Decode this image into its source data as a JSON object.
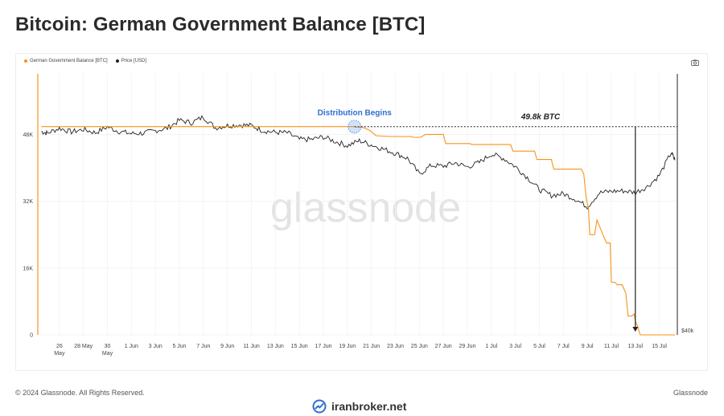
{
  "page": {
    "title": "Bitcoin: German Government Balance [BTC]",
    "copyright": "© 2024 Glassnode. All Rights Reserved.",
    "brand": "Glassnode",
    "watermark": "glassnode",
    "site": "iranbroker.net",
    "camera_icon": "camera-icon",
    "site_icon": "chart-logo-icon"
  },
  "chart_data": {
    "type": "line",
    "x_ticks": [
      {
        "day": 0,
        "label": [
          "26",
          "May"
        ]
      },
      {
        "day": 2,
        "label": [
          "28 May"
        ]
      },
      {
        "day": 4,
        "label": [
          "30",
          "May"
        ]
      },
      {
        "day": 6,
        "label": [
          "1 Jun"
        ]
      },
      {
        "day": 8,
        "label": [
          "3 Jun"
        ]
      },
      {
        "day": 10,
        "label": [
          "5 Jun"
        ]
      },
      {
        "day": 12,
        "label": [
          "7 Jun"
        ]
      },
      {
        "day": 14,
        "label": [
          "9 Jun"
        ]
      },
      {
        "day": 16,
        "label": [
          "11 Jun"
        ]
      },
      {
        "day": 18,
        "label": [
          "13 Jun"
        ]
      },
      {
        "day": 20,
        "label": [
          "15 Jun"
        ]
      },
      {
        "day": 22,
        "label": [
          "17 Jun"
        ]
      },
      {
        "day": 24,
        "label": [
          "19 Jun"
        ]
      },
      {
        "day": 26,
        "label": [
          "21 Jun"
        ]
      },
      {
        "day": 28,
        "label": [
          "23 Jun"
        ]
      },
      {
        "day": 30,
        "label": [
          "25 Jun"
        ]
      },
      {
        "day": 32,
        "label": [
          "27 Jun"
        ]
      },
      {
        "day": 34,
        "label": [
          "29 Jun"
        ]
      },
      {
        "day": 36,
        "label": [
          "1 Jul"
        ]
      },
      {
        "day": 38,
        "label": [
          "3 Jul"
        ]
      },
      {
        "day": 40,
        "label": [
          "5 Jul"
        ]
      },
      {
        "day": 42,
        "label": [
          "7 Jul"
        ]
      },
      {
        "day": 44,
        "label": [
          "9 Jul"
        ]
      },
      {
        "day": 46,
        "label": [
          "11 Jul"
        ]
      },
      {
        "day": 48,
        "label": [
          "13 Jul"
        ]
      },
      {
        "day": 50,
        "label": [
          "15 Jul"
        ]
      }
    ],
    "x_range": [
      -1.8,
      51.5
    ],
    "y_left": {
      "ticks": [
        0,
        16000,
        32000,
        48000
      ],
      "labels": [
        "0",
        "16K",
        "32K",
        "48K"
      ],
      "range": [
        0,
        62500
      ]
    },
    "y_right": {
      "labels": [
        "$40k"
      ],
      "value": 40000
    },
    "grid": true,
    "legend_position": "top-left",
    "series": [
      {
        "name": "German Government Balance [BTC]",
        "color": "#f7931a",
        "axis": "left",
        "points": [
          [
            -1.5,
            49858
          ],
          [
            24.6,
            49858
          ],
          [
            24.6,
            49800
          ],
          [
            25.4,
            49600
          ],
          [
            25.9,
            48900
          ],
          [
            26.4,
            47700
          ],
          [
            27.6,
            47500
          ],
          [
            29.3,
            47500
          ],
          [
            29.5,
            47300
          ],
          [
            30.1,
            47300
          ],
          [
            30.5,
            48000
          ],
          [
            32.0,
            48000
          ],
          [
            32.2,
            45800
          ],
          [
            34.2,
            45800
          ],
          [
            34.4,
            45600
          ],
          [
            37.6,
            45600
          ],
          [
            37.8,
            44000
          ],
          [
            39.6,
            44000
          ],
          [
            39.8,
            42000
          ],
          [
            41.0,
            42000
          ],
          [
            41.2,
            39700
          ],
          [
            43.5,
            39700
          ],
          [
            43.7,
            38500
          ],
          [
            43.9,
            33000
          ],
          [
            44.1,
            30000
          ],
          [
            44.2,
            24000
          ],
          [
            44.6,
            24000
          ],
          [
            44.8,
            27500
          ],
          [
            45.3,
            24000
          ],
          [
            45.6,
            22000
          ],
          [
            45.9,
            22000
          ],
          [
            46.0,
            12600
          ],
          [
            46.3,
            12600
          ],
          [
            46.5,
            12000
          ],
          [
            46.9,
            12000
          ],
          [
            47.2,
            10000
          ],
          [
            47.4,
            4500
          ],
          [
            47.7,
            4500
          ],
          [
            47.9,
            5000
          ],
          [
            48.0,
            3300
          ],
          [
            48.2,
            2000
          ],
          [
            48.4,
            0
          ],
          [
            51.3,
            0
          ]
        ]
      },
      {
        "name": "Price [USD]",
        "color": "#222222",
        "axis": "left",
        "points": [
          [
            -1.5,
            48700
          ],
          [
            -1,
            48300
          ],
          [
            0,
            49500
          ],
          [
            1,
            48600
          ],
          [
            2,
            49200
          ],
          [
            3,
            48400
          ],
          [
            4,
            49800
          ],
          [
            5,
            48700
          ],
          [
            6,
            48200
          ],
          [
            7,
            48300
          ],
          [
            8,
            48900
          ],
          [
            9,
            49500
          ],
          [
            10,
            51400
          ],
          [
            11,
            50800
          ],
          [
            12,
            52200
          ],
          [
            13,
            49600
          ],
          [
            14,
            50100
          ],
          [
            15,
            50300
          ],
          [
            16,
            50100
          ],
          [
            17,
            48900
          ],
          [
            18,
            48500
          ],
          [
            19,
            48400
          ],
          [
            20,
            46800
          ],
          [
            21,
            46800
          ],
          [
            22,
            47400
          ],
          [
            23,
            46300
          ],
          [
            24,
            45300
          ],
          [
            25,
            46500
          ],
          [
            26,
            45500
          ],
          [
            27,
            44500
          ],
          [
            28,
            43500
          ],
          [
            29,
            42300
          ],
          [
            30,
            38500
          ],
          [
            31,
            40600
          ],
          [
            32,
            40400
          ],
          [
            33,
            41200
          ],
          [
            34,
            40200
          ],
          [
            35,
            41300
          ],
          [
            36,
            43300
          ],
          [
            37,
            42300
          ],
          [
            38,
            40300
          ],
          [
            39,
            37700
          ],
          [
            40,
            34800
          ],
          [
            41,
            33400
          ],
          [
            42,
            33800
          ],
          [
            43,
            32500
          ],
          [
            44,
            30700
          ],
          [
            45,
            34000
          ],
          [
            46,
            34400
          ],
          [
            47,
            34500
          ],
          [
            48,
            34100
          ],
          [
            49,
            35500
          ],
          [
            50,
            38200
          ],
          [
            51,
            43700
          ],
          [
            51.3,
            41800
          ]
        ]
      }
    ],
    "annotations": {
      "distribution_label": "Distribution Begins",
      "distribution_day": 24.6,
      "balance_label": "49.8k BTC",
      "balance_value": 49858,
      "arrow_day": 48.0
    }
  }
}
